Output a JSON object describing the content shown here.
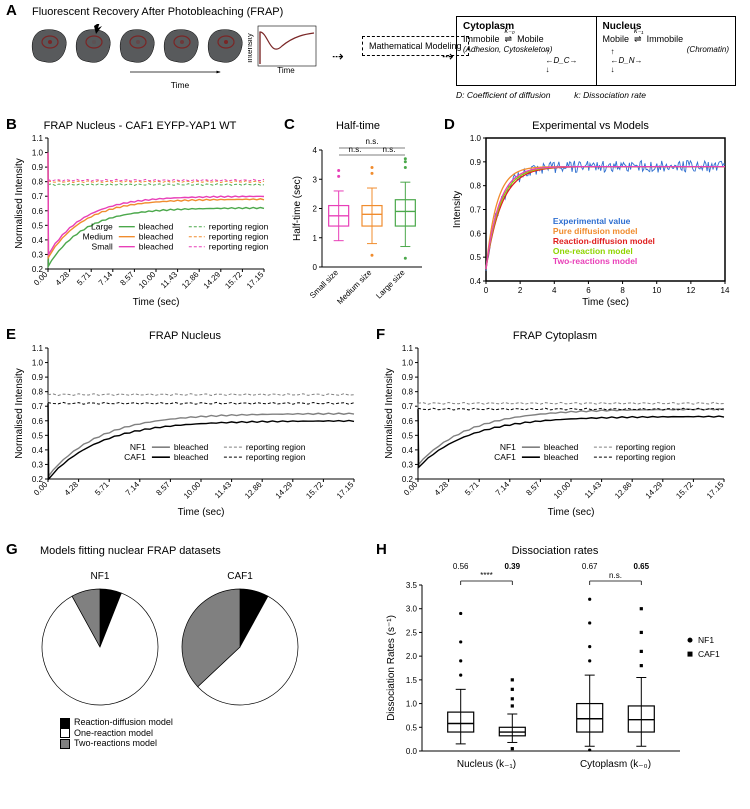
{
  "colors": {
    "bg": "#ffffff",
    "black": "#000000",
    "grey_mid": "#808080",
    "grey_dark": "#4d4d4d",
    "magenta": "#e83fb8",
    "orange": "#f08c2e",
    "green": "#4ba84b",
    "blue": "#2f6fd0",
    "red": "#e02020",
    "lime": "#8fd400",
    "grey_light": "#bfbfbf",
    "cell_fill": "#585a5c",
    "cell_nucleus": "#7a2626"
  },
  "panelA": {
    "label": "A",
    "title": "Fluorescent Recovery After Photobleaching (FRAP)",
    "math_box": "Mathematical\nModeling",
    "cyto_title": "Cytoplasm",
    "cyto_left": "Immobile",
    "cyto_left_sub": "(Adhesion,\nCytoskeleton)",
    "cyto_right": "Mobile",
    "cyto_k": "k₋₀",
    "cyto_D": "←D_C→",
    "nuc_title": "Nucleus",
    "nuc_left": "Mobile",
    "nuc_right": "Immobile",
    "nuc_right_sub": "(Chromatin)",
    "nuc_k": "k₋₁",
    "nuc_D": "←D_N→",
    "legend_D": "D: Coefficient of diffusion",
    "legend_k": "k: Dissociation rate",
    "recovery_x": "Time",
    "recovery_y": "Intensity",
    "cells_x": "Time"
  },
  "panelB": {
    "label": "B",
    "title": "FRAP Nucleus - CAF1 EYFP-YAP1 WT",
    "ylabel": "Normalised Intensity",
    "xlabel": "Time (sec)",
    "ylim": [
      0.2,
      1.1
    ],
    "ytick_step": 0.1,
    "xticks": [
      "0.00",
      "4.28",
      "5.71",
      "7.14",
      "8.57",
      "10.00",
      "11.43",
      "12.86",
      "14.29",
      "15.72",
      "17.15"
    ],
    "legend_rows": [
      "Large",
      "Medium",
      "Small"
    ],
    "legend_cols": [
      "bleached",
      "reporting region"
    ],
    "series_colors": [
      "#4ba84b",
      "#f08c2e",
      "#e83fb8"
    ],
    "reporting_level": [
      0.78,
      0.8,
      0.81
    ],
    "bleached_start": [
      0.22,
      0.28,
      0.3
    ],
    "bleached_plateau": [
      0.62,
      0.68,
      0.7
    ],
    "start_spike": 1.0
  },
  "panelC": {
    "label": "C",
    "title": "Half-time",
    "ylabel": "Half-time (sec)",
    "ylim": [
      0,
      4
    ],
    "ytick_step": 1,
    "categories": [
      "Small size",
      "Medium size",
      "Large size"
    ],
    "colors": [
      "#e83fb8",
      "#f08c2e",
      "#4ba84b"
    ],
    "boxes": [
      {
        "min": 0.9,
        "q1": 1.4,
        "med": 1.75,
        "q3": 2.1,
        "max": 2.6,
        "outliers": [
          3.1,
          3.3
        ]
      },
      {
        "min": 0.8,
        "q1": 1.4,
        "med": 1.8,
        "q3": 2.1,
        "max": 2.7,
        "outliers": [
          0.4,
          3.2,
          3.4
        ]
      },
      {
        "min": 0.7,
        "q1": 1.4,
        "med": 1.9,
        "q3": 2.3,
        "max": 2.9,
        "outliers": [
          0.3,
          3.4,
          3.6,
          3.7
        ]
      }
    ],
    "ns_label": "n.s."
  },
  "panelD": {
    "label": "D",
    "title": "Experimental vs Models",
    "ylabel": "Intensity",
    "xlabel": "Time (sec)",
    "ylim": [
      0.4,
      1.0
    ],
    "ytick_step": 0.1,
    "xlim": [
      0,
      14
    ],
    "xtick_step": 2,
    "legend": [
      {
        "label": "Experimental value",
        "color": "#2f6fd0"
      },
      {
        "label": "Pure diffusion model",
        "color": "#f08c2e"
      },
      {
        "label": "Reaction-diffusion model",
        "color": "#e02020"
      },
      {
        "label": "One-reaction model",
        "color": "#8fd400"
      },
      {
        "label": "Two-reactions model",
        "color": "#e83fb8"
      }
    ],
    "curve_start": 0.45,
    "curve_plateau": 0.88
  },
  "panelE": {
    "label": "E",
    "title": "FRAP Nucleus",
    "ylabel": "Normalised Intensity",
    "xlabel": "Time (sec)",
    "ylim": [
      0.2,
      1.1
    ],
    "ytick_step": 0.1,
    "xticks": [
      "0.00",
      "4.28",
      "5.71",
      "7.14",
      "8.57",
      "10.00",
      "11.43",
      "12.86",
      "14.29",
      "15.72",
      "17.15"
    ],
    "legend_rows": [
      "NF1",
      "CAF1"
    ],
    "series_colors": [
      "#808080",
      "#000000"
    ],
    "reporting_level": [
      0.78,
      0.72
    ],
    "bleached_start": [
      0.22,
      0.2
    ],
    "bleached_plateau": [
      0.65,
      0.6
    ]
  },
  "panelF": {
    "label": "F",
    "title": "FRAP Cytoplasm",
    "ylabel": "Normalised Intensity",
    "xlabel": "Time (sec)",
    "ylim": [
      0.2,
      1.1
    ],
    "ytick_step": 0.1,
    "xticks": [
      "0.00",
      "4.28",
      "5.71",
      "7.14",
      "8.57",
      "10.00",
      "11.43",
      "12.86",
      "14.29",
      "15.72",
      "17.15"
    ],
    "legend_rows": [
      "NF1",
      "CAF1"
    ],
    "series_colors": [
      "#808080",
      "#000000"
    ],
    "reporting_level": [
      0.72,
      0.68
    ],
    "bleached_start": [
      0.3,
      0.28
    ],
    "bleached_plateau": [
      0.68,
      0.63
    ]
  },
  "panelG": {
    "label": "G",
    "title": "Models fitting nuclear FRAP datasets",
    "pies": [
      {
        "name": "NF1",
        "slices": [
          {
            "label": "Reaction-diffusion model",
            "frac": 0.06,
            "color": "#000000"
          },
          {
            "label": "One-reaction model",
            "frac": 0.86,
            "color": "#ffffff"
          },
          {
            "label": "Two-reactions model",
            "frac": 0.08,
            "color": "#808080"
          }
        ]
      },
      {
        "name": "CAF1",
        "slices": [
          {
            "label": "Reaction-diffusion model",
            "frac": 0.08,
            "color": "#000000"
          },
          {
            "label": "One-reaction model",
            "frac": 0.55,
            "color": "#ffffff"
          },
          {
            "label": "Two-reactions model",
            "frac": 0.37,
            "color": "#808080"
          }
        ]
      }
    ],
    "legend": [
      "Reaction-diffusion model",
      "One-reaction model",
      "Two-reactions model"
    ],
    "legend_colors": [
      "#000000",
      "#ffffff",
      "#808080"
    ]
  },
  "panelH": {
    "label": "H",
    "title": "Dissociation rates",
    "ylabel": "Dissociation Rates (s⁻¹)",
    "ylim": [
      0,
      3.5
    ],
    "ytick_step": 0.5,
    "groups": [
      "Nucleus (k₋₁)",
      "Cytoplasm (k₋₀)"
    ],
    "group_labels_top": [
      [
        "0.56",
        "0.39"
      ],
      [
        "0.67",
        "0.65"
      ]
    ],
    "sig_labels": [
      "****",
      "n.s."
    ],
    "legend": [
      {
        "label": "NF1",
        "marker": "circle"
      },
      {
        "label": "CAF1",
        "marker": "square"
      }
    ],
    "boxes": [
      {
        "min": 0.15,
        "q1": 0.4,
        "med": 0.58,
        "q3": 0.82,
        "max": 1.3,
        "outliers": [
          1.6,
          1.9,
          2.3,
          2.9
        ]
      },
      {
        "min": 0.18,
        "q1": 0.32,
        "med": 0.4,
        "q3": 0.5,
        "max": 0.78,
        "outliers": [
          0.95,
          1.1,
          1.3,
          1.5,
          0.05
        ]
      },
      {
        "min": 0.1,
        "q1": 0.4,
        "med": 0.68,
        "q3": 1.0,
        "max": 1.6,
        "outliers": [
          1.9,
          2.2,
          2.7,
          3.2,
          0.02
        ]
      },
      {
        "min": 0.1,
        "q1": 0.4,
        "med": 0.66,
        "q3": 0.95,
        "max": 1.55,
        "outliers": [
          1.8,
          2.1,
          2.5,
          3.0
        ]
      }
    ]
  }
}
